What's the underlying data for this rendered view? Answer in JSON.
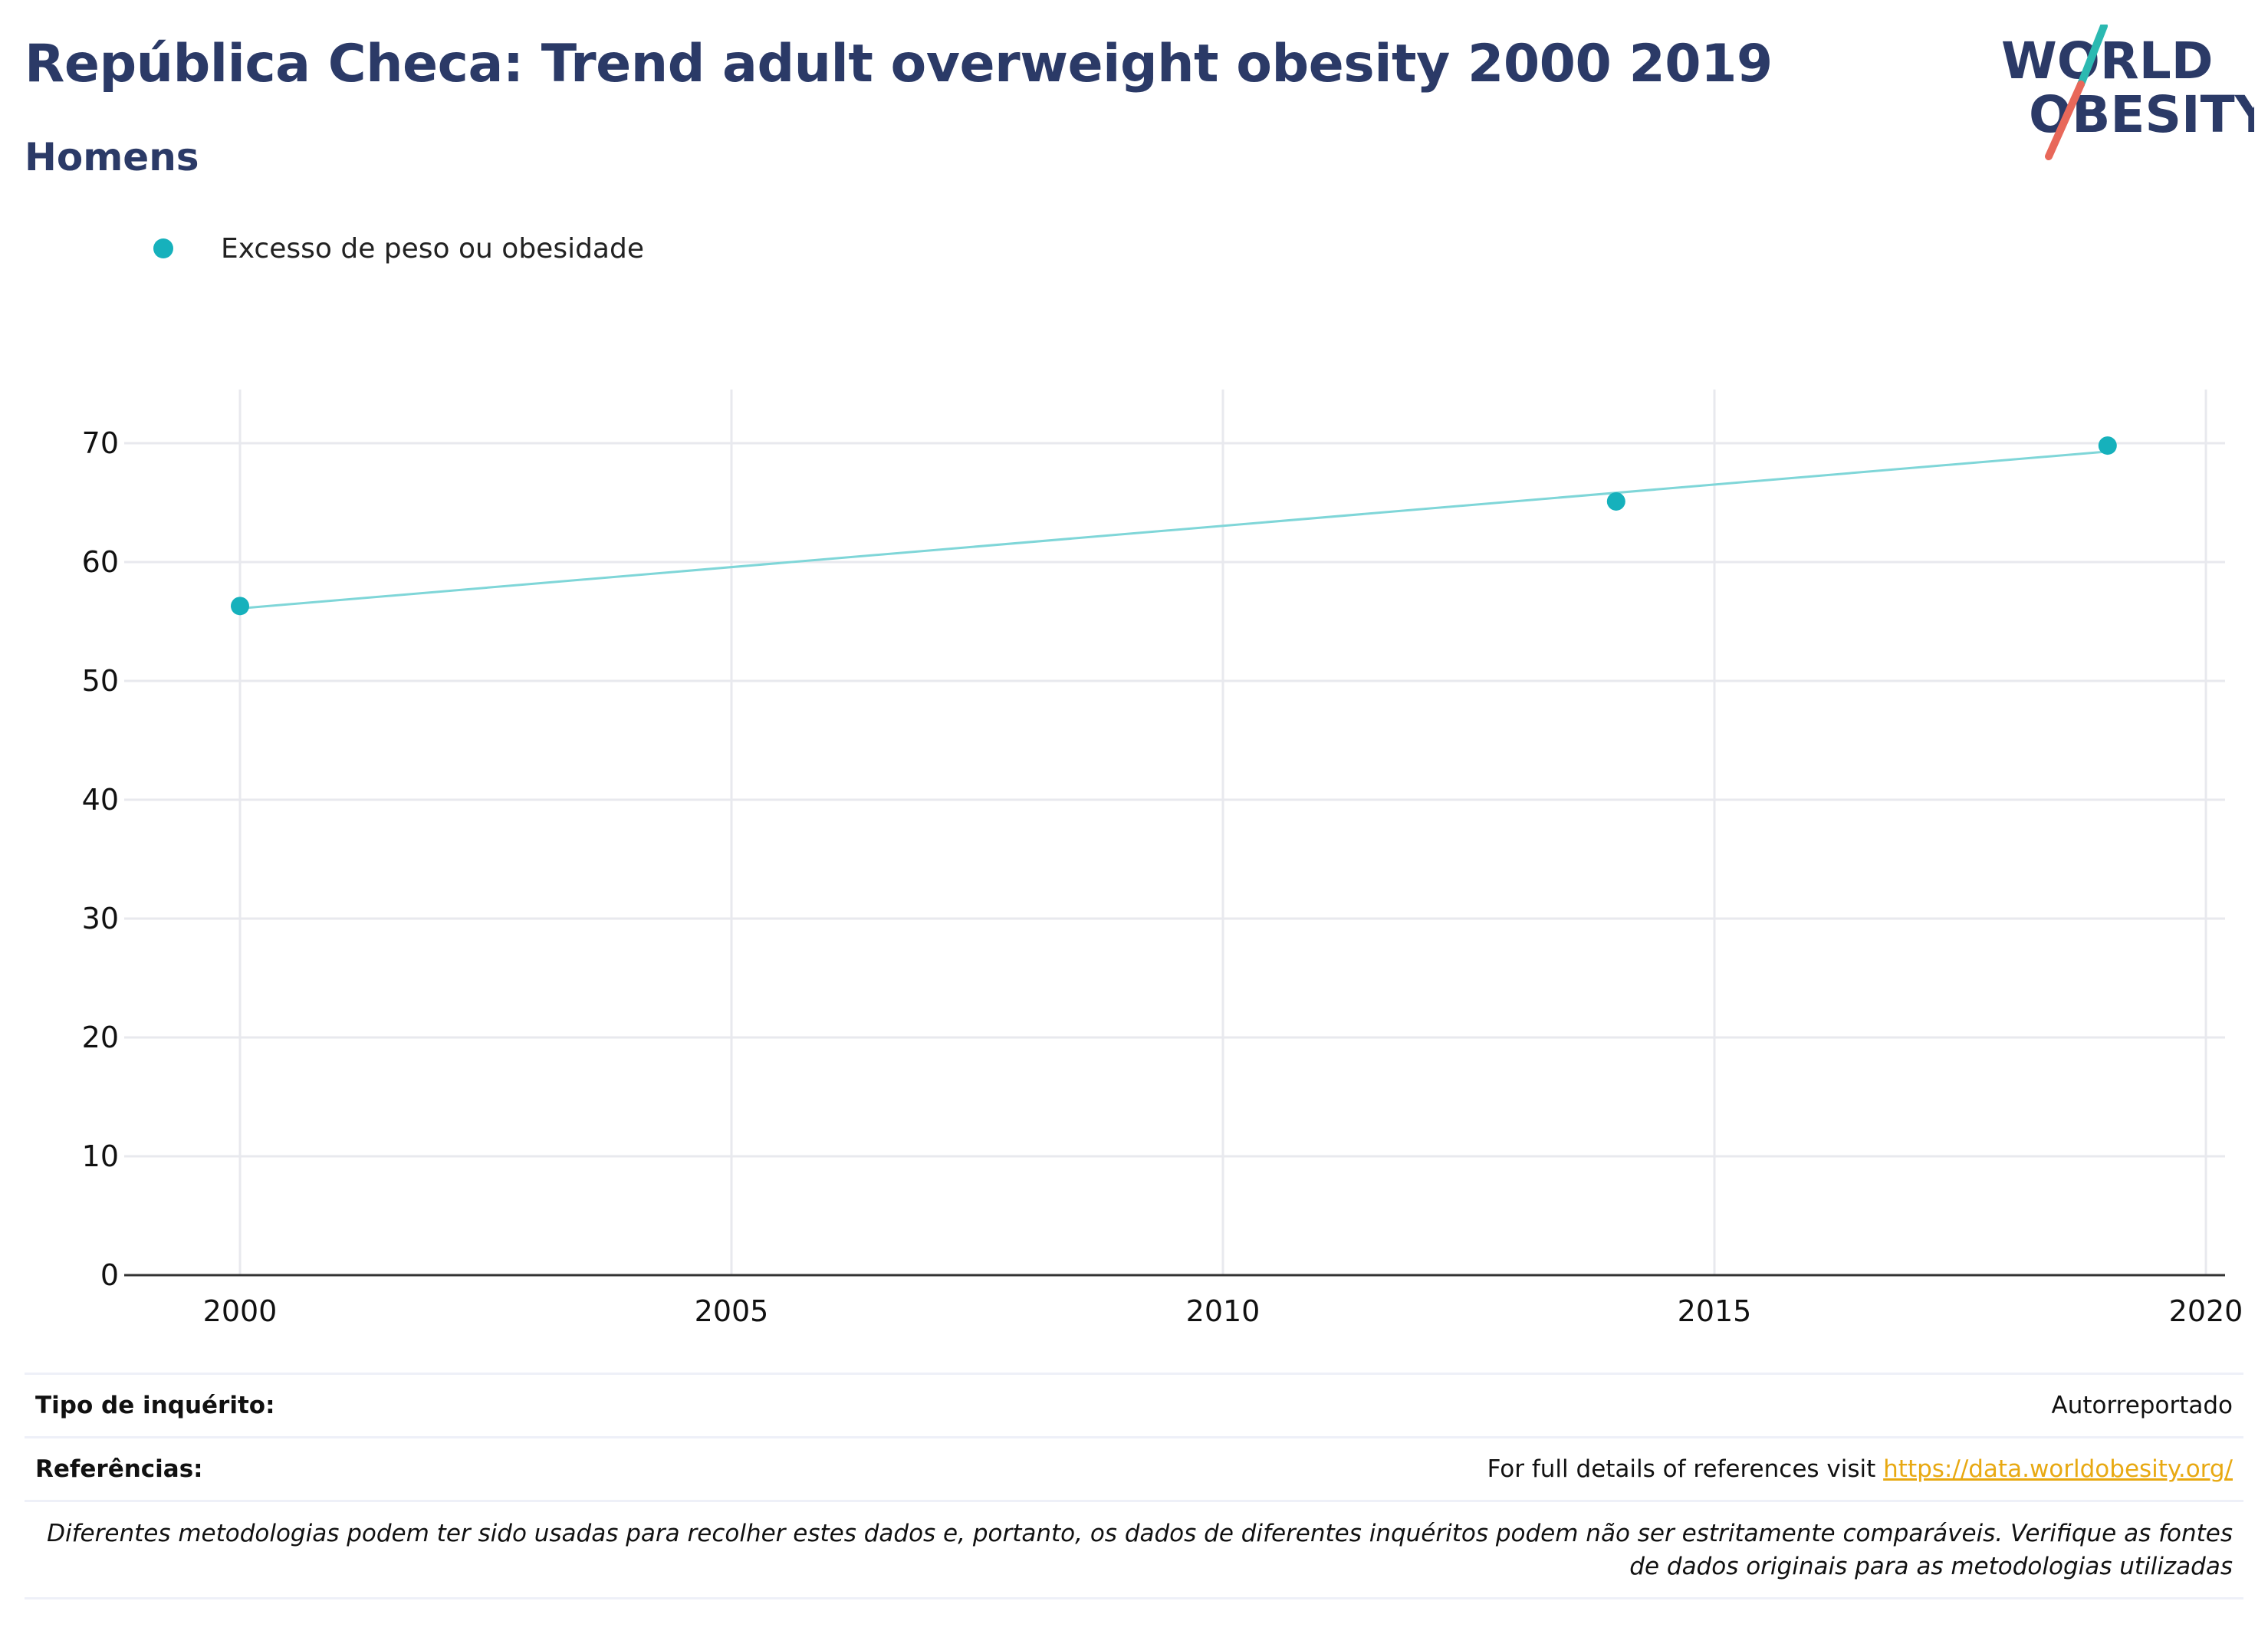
{
  "header": {
    "title": "República Checa: Trend adult overweight obesity 2000 2019",
    "subtitle": "Homens"
  },
  "logo": {
    "line1": "WORLD",
    "line2": "OBESITY",
    "slash_top_color": "#2bb9b1",
    "slash_bottom_color": "#e8685a",
    "text_color": "#2b3a67"
  },
  "legend": {
    "label": "Excesso de peso ou obesidade",
    "color": "#16b1bc"
  },
  "chart_data": {
    "type": "scatter",
    "title": "República Checa: Trend adult overweight obesity 2000 2019",
    "subtitle": "Homens",
    "xlabel": "",
    "ylabel": "",
    "xlim": [
      1999.3,
      2020.2
    ],
    "ylim": [
      0,
      74.5
    ],
    "xticks": [
      2000,
      2005,
      2010,
      2015,
      2020
    ],
    "yticks": [
      0,
      10,
      20,
      30,
      40,
      50,
      60,
      70
    ],
    "grid": true,
    "legend_position": "top-left",
    "series": [
      {
        "name": "Excesso de peso ou obesidade",
        "color": "#16b1bc",
        "points": [
          {
            "x": 2000,
            "y": 56.3
          },
          {
            "x": 2014,
            "y": 65.1
          },
          {
            "x": 2019,
            "y": 69.8
          }
        ]
      }
    ],
    "trendline": {
      "color": "#7fd6d8",
      "from": {
        "x": 2000,
        "y": 56.1
      },
      "to": {
        "x": 2019,
        "y": 69.3
      }
    }
  },
  "footer": {
    "survey_label": "Tipo de inquérito:",
    "survey_value": "Autorreportado",
    "references_label": "Referências:",
    "references_text": "For full details of references visit ",
    "references_link": "https://data.worldobesity.org/",
    "note": "Diferentes metodologias podem ter sido usadas para recolher estes dados e, portanto, os dados de diferentes inquéritos podem não ser estritamente comparáveis. Verifique as fontes de dados originais para as metodologias utilizadas"
  }
}
